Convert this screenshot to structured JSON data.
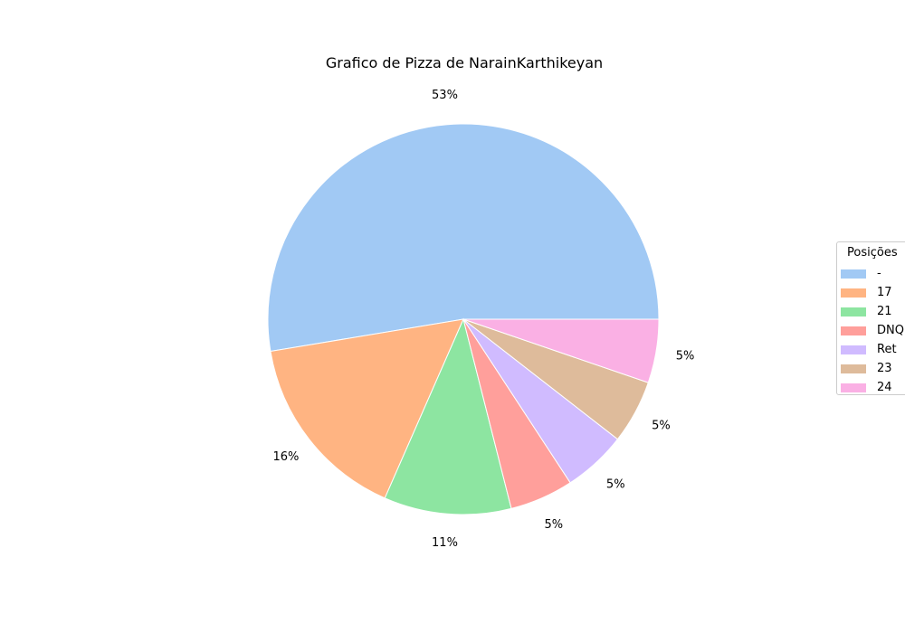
{
  "chart_data": {
    "type": "pie",
    "title": "Grafico de Pizza de NarainKarthikeyan",
    "legend": {
      "title": "Posições",
      "placement": "right"
    },
    "slices": [
      {
        "label": "-",
        "value": 10,
        "pct_label": "53%",
        "color": "#a1c9f4"
      },
      {
        "label": "17",
        "value": 3,
        "pct_label": "16%",
        "color": "#ffb482"
      },
      {
        "label": "21",
        "value": 2,
        "pct_label": "11%",
        "color": "#8de5a1"
      },
      {
        "label": "DNQ",
        "value": 1,
        "pct_label": "5%",
        "color": "#ff9f9b"
      },
      {
        "label": "Ret",
        "value": 1,
        "pct_label": "5%",
        "color": "#d0bbff"
      },
      {
        "label": "23",
        "value": 1,
        "pct_label": "5%",
        "color": "#debb9b"
      },
      {
        "label": "24",
        "value": 1,
        "pct_label": "5%",
        "color": "#fab0e4"
      }
    ],
    "start_angle": 0,
    "direction": "counterclockwise"
  }
}
